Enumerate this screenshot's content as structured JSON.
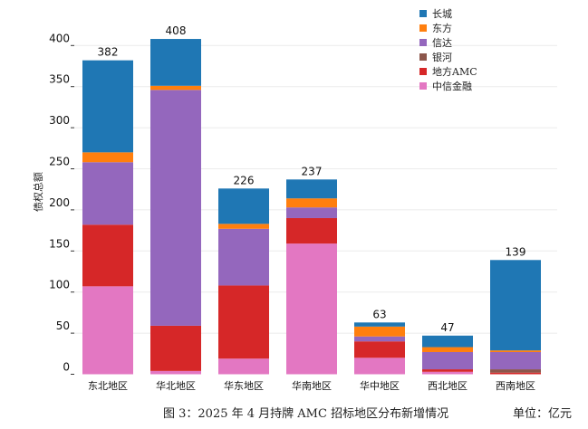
{
  "chart_data": {
    "type": "bar",
    "stacked": true,
    "title": "",
    "xlabel": "",
    "ylabel": "债权总额",
    "ylim": [
      0,
      420
    ],
    "yticks": [
      0,
      50,
      100,
      150,
      200,
      250,
      300,
      350,
      400
    ],
    "grid": true,
    "legend_position": "top-right",
    "categories": [
      "东北地区",
      "华北地区",
      "华东地区",
      "华南地区",
      "华中地区",
      "西北地区",
      "西南地区"
    ],
    "totals": [
      382,
      408,
      226,
      237,
      63,
      47,
      139
    ],
    "series": [
      {
        "name": "中信金融",
        "color": "#e377c2",
        "values": [
          107,
          4,
          19,
          159,
          20,
          3,
          0
        ]
      },
      {
        "name": "地方AMC",
        "color": "#d62728",
        "values": [
          75,
          55,
          89,
          31,
          20,
          3,
          2
        ]
      },
      {
        "name": "银河",
        "color": "#8c564b",
        "values": [
          0,
          0,
          0,
          0,
          0,
          0,
          4
        ]
      },
      {
        "name": "信达",
        "color": "#9467bd",
        "values": [
          76,
          287,
          69,
          13,
          6,
          21,
          21
        ]
      },
      {
        "name": "东方",
        "color": "#ff7f0e",
        "values": [
          12,
          5,
          6,
          11,
          12,
          6,
          2
        ]
      },
      {
        "name": "长城",
        "color": "#1f77b4",
        "values": [
          112,
          57,
          43,
          23,
          5,
          14,
          110
        ]
      }
    ],
    "legend_order": [
      "长城",
      "东方",
      "信达",
      "银河",
      "地方AMC",
      "中信金融"
    ]
  },
  "caption": "图 3：2025 年 4 月持牌 AMC 招标地区分布新增情况",
  "unit": "单位：亿元"
}
